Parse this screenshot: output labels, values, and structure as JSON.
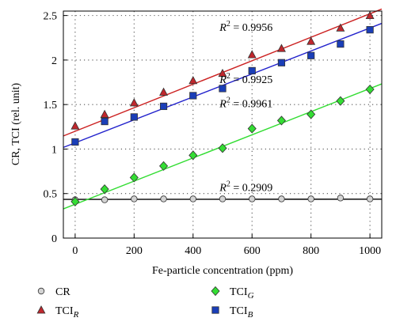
{
  "chart_data": {
    "type": "scatter",
    "xlabel": "Fe-particle concentration (ppm)",
    "ylabel": "CR, TCI (rel. unit)",
    "xlim": [
      -40,
      1040
    ],
    "ylim": [
      0,
      2.55
    ],
    "x_ticks": [
      "0",
      "200",
      "400",
      "600",
      "800",
      "1000"
    ],
    "y_ticks": [
      "0",
      "0.5",
      "1",
      "1.5",
      "2",
      "2.5"
    ],
    "grid": "dotted",
    "legend_placement": "bottom",
    "series": [
      {
        "name": "CR",
        "name_main": "CR",
        "name_sub": "",
        "marker": "circle",
        "color": "#d3d3d3",
        "line_color": "#000000",
        "x": [
          0,
          100,
          200,
          300,
          400,
          500,
          600,
          700,
          800,
          900,
          1000
        ],
        "values": [
          0.43,
          0.43,
          0.44,
          0.44,
          0.44,
          0.44,
          0.44,
          0.44,
          0.44,
          0.45,
          0.44
        ],
        "fit": [
          0.435,
          0.437
        ],
        "r2_label": "= 0.2909",
        "r2_pos": [
          490,
          0.53
        ]
      },
      {
        "name": "TCI_R",
        "name_main": "TCI",
        "name_sub": "R",
        "marker": "triangle",
        "color": "#c0272d",
        "line_color": "#cc2222",
        "x": [
          0,
          100,
          200,
          300,
          400,
          500,
          600,
          700,
          800,
          900,
          1000
        ],
        "values": [
          1.26,
          1.39,
          1.52,
          1.64,
          1.77,
          1.85,
          2.06,
          2.13,
          2.21,
          2.36,
          2.5
        ],
        "fit": [
          1.2,
          2.52
        ],
        "r2_label": "= 0.9956",
        "r2_pos": [
          490,
          2.33
        ]
      },
      {
        "name": "TCI_G",
        "name_main": "TCI",
        "name_sub": "G",
        "marker": "diamond",
        "color": "#33dd33",
        "line_color": "#33dd33",
        "x": [
          0,
          100,
          200,
          300,
          400,
          500,
          600,
          700,
          800,
          900,
          1000
        ],
        "values": [
          0.41,
          0.55,
          0.68,
          0.81,
          0.93,
          1.01,
          1.23,
          1.32,
          1.39,
          1.54,
          1.67
        ],
        "fit": [
          0.38,
          1.68
        ],
        "r2_label": "= 0.9961",
        "r2_pos": [
          490,
          1.47
        ]
      },
      {
        "name": "TCI_B",
        "name_main": "TCI",
        "name_sub": "B",
        "marker": "square",
        "color": "#1a3eb8",
        "line_color": "#2222cc",
        "x": [
          0,
          100,
          200,
          300,
          400,
          500,
          600,
          700,
          800,
          900,
          1000
        ],
        "values": [
          1.08,
          1.31,
          1.36,
          1.48,
          1.6,
          1.68,
          1.88,
          1.97,
          2.05,
          2.18,
          2.34
        ],
        "fit": [
          1.07,
          2.36
        ],
        "r2_label": "= 0.9925",
        "r2_pos": [
          490,
          1.74
        ]
      }
    ],
    "r2_symbol": "R",
    "r2_power": "2"
  }
}
